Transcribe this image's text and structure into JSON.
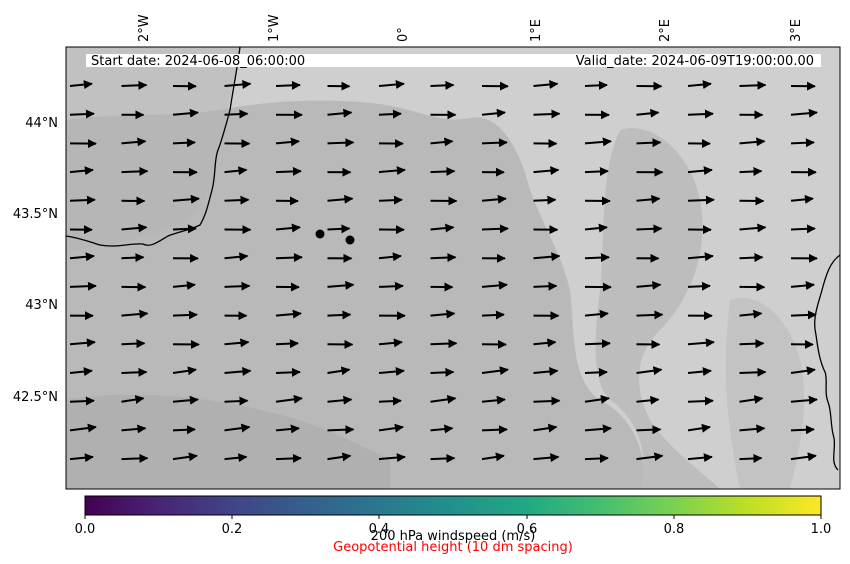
{
  "header": {
    "start_label": "Start date: 2024-06-08_06:00:00",
    "valid_label": "Valid_date: 2024-06-09T19:00:00.00"
  },
  "map": {
    "longitude_labels": [
      "2°W",
      "1°W",
      "0°",
      "1°E",
      "2°E",
      "3°E"
    ],
    "latitude_labels": [
      "44°N",
      "43.5°N",
      "43°N",
      "42.5°N"
    ],
    "colors": {
      "terrain_low": "#b3b3b3",
      "terrain_high": "#cfcfcf",
      "coastline": "#000000",
      "wind_arrow": "#000000",
      "station_marker": "#000000"
    }
  },
  "colorbar": {
    "label": "200 hPa windspeed (m/s)",
    "ticks": [
      "0.0",
      "0.2",
      "0.4",
      "0.6",
      "0.8",
      "1.0"
    ],
    "colormap": "viridis"
  },
  "subtitle": {
    "text": "Geopotential height (10 dm spacing)",
    "color": "#ff0000"
  }
}
